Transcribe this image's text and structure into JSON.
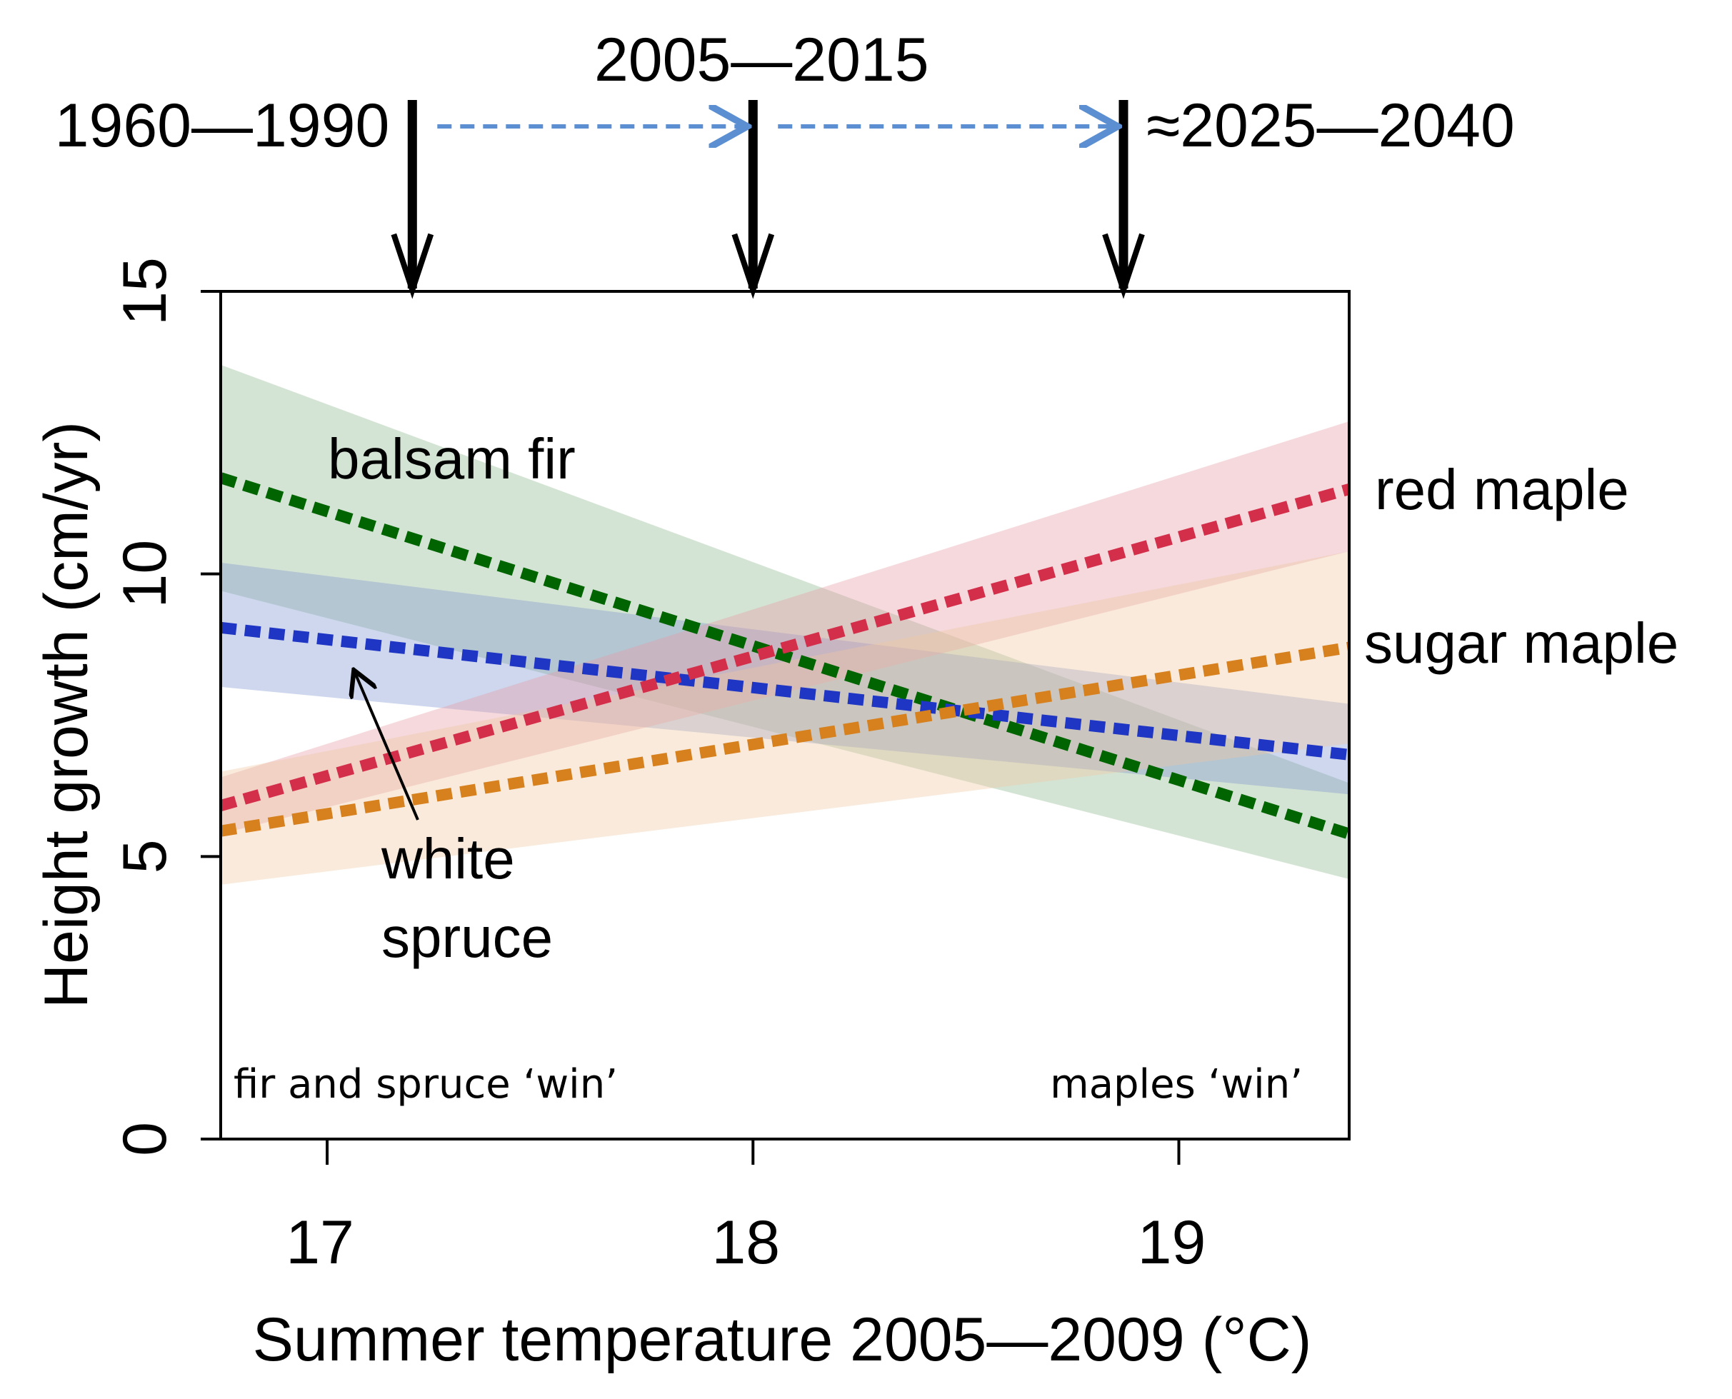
{
  "chart_data": {
    "type": "line",
    "title": "",
    "xlabel": "Summer temperature 2005—2009 (°C)",
    "ylabel": "Height growth (cm/yr)",
    "xlim": [
      16.75,
      19.4
    ],
    "ylim": [
      0,
      15
    ],
    "xticks": [
      {
        "value": 17,
        "label": "17"
      },
      {
        "value": 18,
        "label": "18"
      },
      {
        "value": 19,
        "label": "19"
      }
    ],
    "yticks": [
      {
        "value": 0,
        "label": "0"
      },
      {
        "value": 5,
        "label": "5"
      },
      {
        "value": 10,
        "label": "10"
      },
      {
        "value": 15,
        "label": "15"
      }
    ],
    "grid": false,
    "series": [
      {
        "name": "balsam fir",
        "color": "#006400",
        "band_color": "#8db88d",
        "x": [
          16.75,
          19.4
        ],
        "y": [
          11.7,
          5.4
        ],
        "lower": [
          9.7,
          4.6
        ],
        "upper": [
          13.7,
          6.3
        ]
      },
      {
        "name": "white spruce",
        "color": "#1f35c4",
        "band_color": "#7d97cf",
        "x": [
          16.75,
          19.4
        ],
        "y": [
          9.05,
          6.8
        ],
        "lower": [
          8.0,
          6.1
        ],
        "upper": [
          10.2,
          7.7
        ]
      },
      {
        "name": "red maple",
        "color": "#d32f4b",
        "band_color": "#e89aa6",
        "x": [
          16.75,
          19.4
        ],
        "y": [
          5.9,
          11.5
        ],
        "lower": [
          5.4,
          10.4
        ],
        "upper": [
          6.4,
          12.7
        ]
      },
      {
        "name": "sugar maple",
        "color": "#d6801e",
        "band_color": "#efc9a0",
        "x": [
          16.75,
          19.4
        ],
        "y": [
          5.45,
          8.7
        ],
        "lower": [
          4.5,
          7.0
        ],
        "upper": [
          6.5,
          10.4
        ]
      }
    ],
    "labels": {
      "balsam_fir": "balsam fir",
      "white_spruce_1": "white",
      "white_spruce_2": "spruce",
      "red_maple": "red maple",
      "sugar_maple": "sugar maple"
    },
    "annotations": {
      "left_win": "fir and spruce ‘win’",
      "right_win": "maples ‘win’"
    },
    "periods": [
      {
        "label": "1960—1990",
        "x": 17.2
      },
      {
        "label": "2005—2015",
        "x": 18.0
      },
      {
        "label": "≈2025—2040",
        "x": 18.87
      }
    ],
    "period_arrow_color": "#5b8fd1"
  }
}
